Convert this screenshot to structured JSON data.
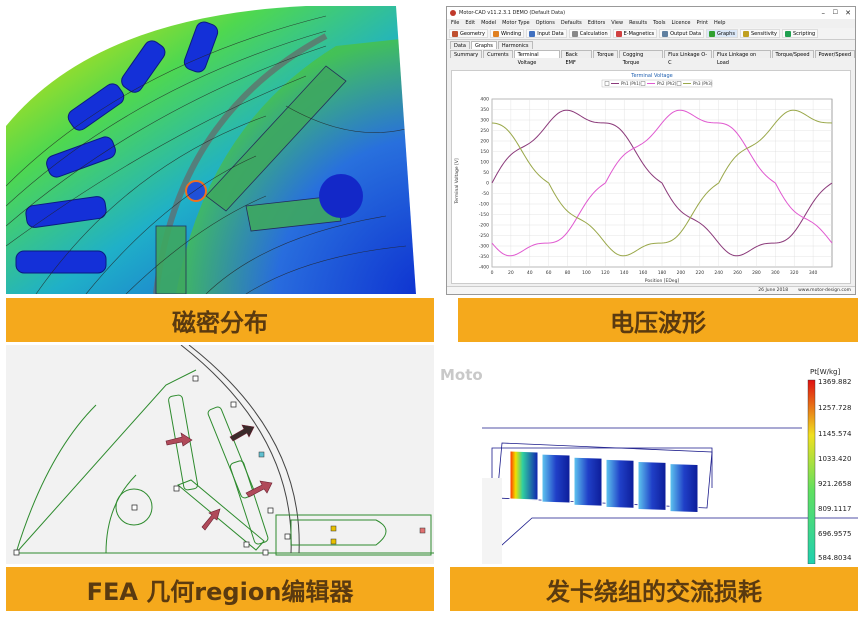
{
  "captions": {
    "tl": "磁密分布",
    "tr": "电压波形",
    "bl": "FEA 几何region编辑器",
    "br": "发卡绕组的交流损耗"
  },
  "watermark": "Motor-CAD",
  "app": {
    "title": "Motor-CAD v11.2.3.1 DEMO (Default Data)",
    "menu": [
      "File",
      "Edit",
      "Model",
      "Motor Type",
      "Options",
      "Defaults",
      "Editors",
      "View",
      "Results",
      "Tools",
      "Licence",
      "Print",
      "Help"
    ],
    "toolbar": [
      "Geometry",
      "Winding",
      "Input Data",
      "Calculation",
      "E-Magnetics",
      "Output Data",
      "Graphs",
      "Sensitivity",
      "Scripting"
    ],
    "tabs_level1": [
      "Data",
      "Graphs",
      "Harmonics"
    ],
    "tabs_level2": [
      "Summary",
      "Currents",
      "Terminal Voltage",
      "Back EMF",
      "Torque",
      "Cogging Torque",
      "Flux Linkage O-C",
      "Flux Linkage on Load",
      "Torque/Speed",
      "Power/Speed"
    ],
    "status_date": "26 June 2018",
    "status_url": "www.motor-design.com"
  },
  "icon_names": [
    "app-logo-icon",
    "minimize-icon",
    "maximize-icon",
    "close-icon"
  ],
  "chart_data": {
    "type": "line",
    "title": "Terminal Voltage",
    "xlabel": "Position [EDeg]",
    "ylabel": "Terminal Voltage [V]",
    "xlim": [
      0,
      360
    ],
    "ylim": [
      -400,
      400
    ],
    "x_ticks": [
      0,
      20,
      40,
      60,
      80,
      100,
      120,
      140,
      160,
      180,
      200,
      220,
      240,
      260,
      280,
      300,
      320,
      340
    ],
    "y_ticks": [
      400,
      350,
      300,
      250,
      200,
      150,
      100,
      50,
      0,
      -50,
      -100,
      -150,
      -200,
      -250,
      -300,
      -350,
      -400
    ],
    "grid": true,
    "legend_position": "top",
    "series": [
      {
        "name": "Ph1 (Ph1)",
        "color": "#8b3a7a",
        "amplitude": 330,
        "phase": 0
      },
      {
        "name": "Ph2 (Ph2)",
        "color": "#e05ad0",
        "amplitude": 330,
        "phase": -120
      },
      {
        "name": "Ph3 (Ph3)",
        "color": "#9aa84a",
        "amplitude": 330,
        "phase": 120
      }
    ]
  },
  "loss_legend": {
    "unit": "Pt[W/kg]",
    "values": [
      "1369.882",
      "1257.728",
      "1145.574",
      "1033.420",
      "921.2658",
      "809.1117",
      "696.9575",
      "584.8034"
    ]
  },
  "colors": {
    "caption_bg": "#f5a91c",
    "caption_text": "#5a3a10",
    "fea_line": "#2e8b2e",
    "arrow": "#b04a5a"
  }
}
